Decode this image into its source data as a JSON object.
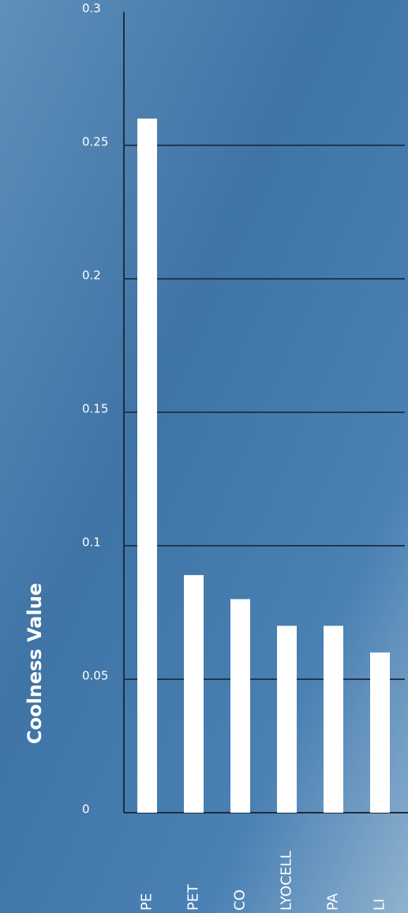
{
  "chart_data": {
    "type": "bar",
    "y_label": "Coolness Value",
    "categories": [
      "PE",
      "PET",
      "CO",
      "LYOCELL",
      "PA",
      "LI"
    ],
    "values": [
      0.26,
      0.089,
      0.08,
      0.07,
      0.07,
      0.06
    ],
    "color": "#ffffff",
    "ylim": [
      0,
      0.3
    ],
    "yticks": [
      0,
      0.05,
      0.1,
      0.15,
      0.2,
      0.25,
      0.3
    ],
    "grid": true
  }
}
